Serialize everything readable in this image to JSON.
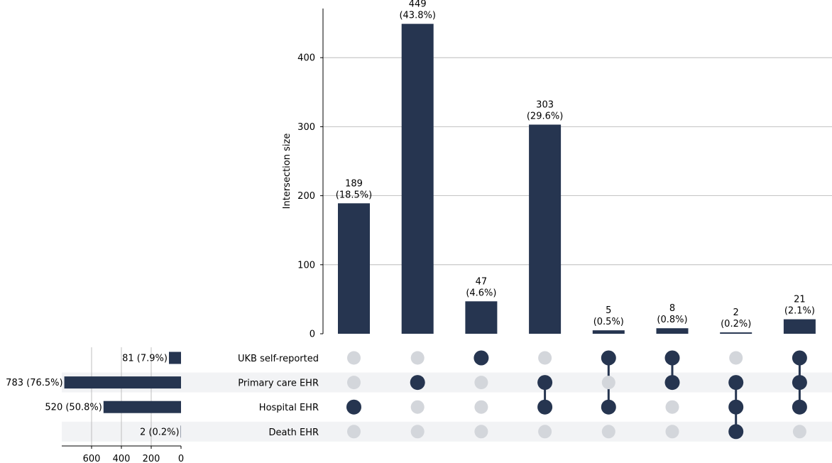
{
  "chart_data": {
    "type": "upset",
    "title": "",
    "ylabel": "Intersection size",
    "ylim": [
      0,
      470
    ],
    "yticks": [
      0,
      100,
      200,
      300,
      400
    ],
    "sets": [
      {
        "name": "UKB self-reported",
        "size": 81,
        "size_label": "81 (7.9%)"
      },
      {
        "name": "Primary care EHR",
        "size": 783,
        "size_label": "783 (76.5%)"
      },
      {
        "name": "Hospital EHR",
        "size": 520,
        "size_label": "520 (50.8%)"
      },
      {
        "name": "Death EHR",
        "size": 2,
        "size_label": "2 (0.2%)"
      }
    ],
    "set_size_axis": {
      "xlim": [
        0,
        800
      ],
      "ticks": [
        600,
        400,
        200,
        0
      ]
    },
    "intersections": [
      {
        "value": 189,
        "count_label": "189",
        "pct_label": "(18.5%)",
        "members": [
          "Hospital EHR"
        ]
      },
      {
        "value": 449,
        "count_label": "449",
        "pct_label": "(43.8%)",
        "members": [
          "Primary care EHR"
        ]
      },
      {
        "value": 47,
        "count_label": "47",
        "pct_label": "(4.6%)",
        "members": [
          "UKB self-reported"
        ]
      },
      {
        "value": 303,
        "count_label": "303",
        "pct_label": "(29.6%)",
        "members": [
          "Primary care EHR",
          "Hospital EHR"
        ]
      },
      {
        "value": 5,
        "count_label": "5",
        "pct_label": "(0.5%)",
        "members": [
          "UKB self-reported",
          "Hospital EHR"
        ]
      },
      {
        "value": 8,
        "count_label": "8",
        "pct_label": "(0.8%)",
        "members": [
          "UKB self-reported",
          "Primary care EHR"
        ]
      },
      {
        "value": 2,
        "count_label": "2",
        "pct_label": "(0.2%)",
        "members": [
          "Primary care EHR",
          "Hospital EHR",
          "Death EHR"
        ]
      },
      {
        "value": 21,
        "count_label": "21",
        "pct_label": "(2.1%)",
        "members": [
          "UKB self-reported",
          "Primary care EHR",
          "Hospital EHR"
        ]
      }
    ],
    "colors": {
      "bar": "#263550",
      "dot_active": "#263550",
      "dot_inactive": "#d3d6db",
      "stripe": "#f2f3f5",
      "grid": "#b0b0b0",
      "axis": "#000000"
    }
  }
}
